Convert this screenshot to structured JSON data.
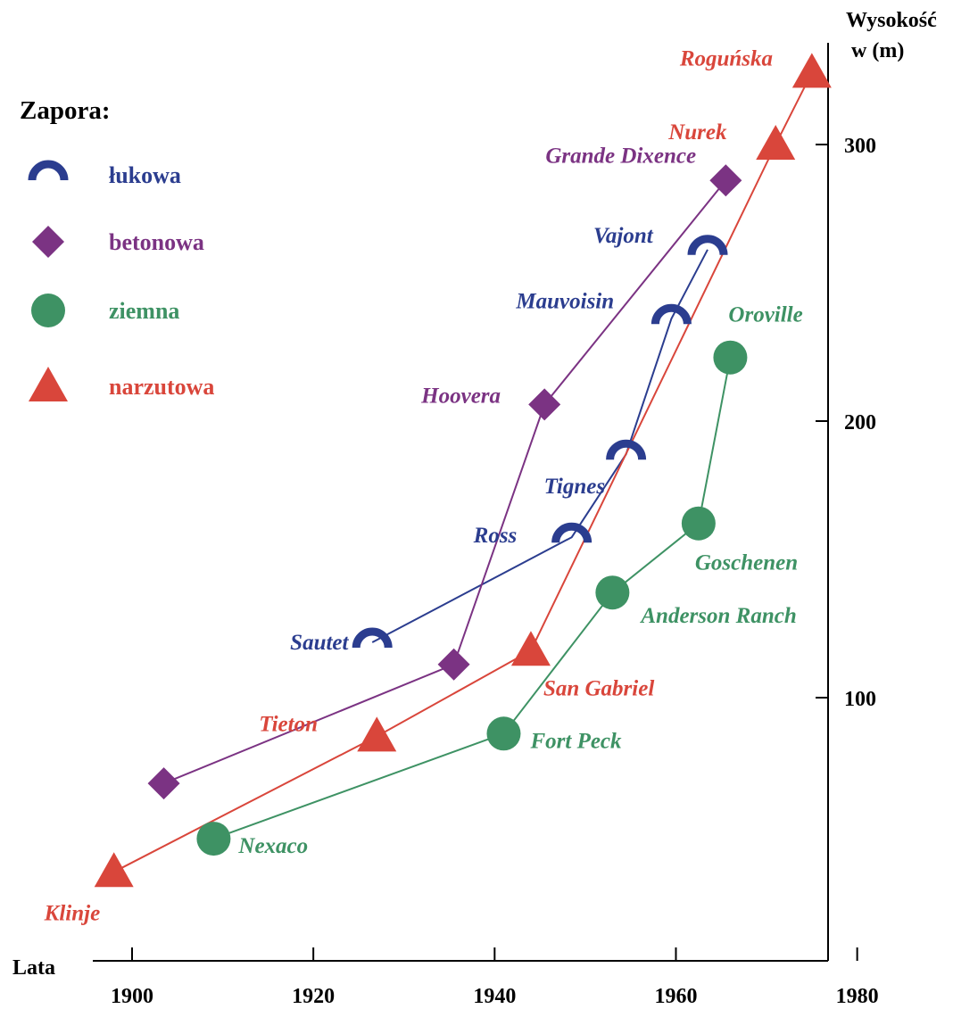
{
  "chart_data": {
    "type": "line",
    "title": "",
    "xlabel": "Lata",
    "ylabel_line1": "Wysokość",
    "ylabel_line2": "w (m)",
    "xlim": [
      1896,
      1980
    ],
    "ylim": [
      0,
      310
    ],
    "x_ticks": [
      1900,
      1920,
      1940,
      1960,
      1980
    ],
    "y_ticks": [
      100,
      200,
      300
    ],
    "legend": {
      "title": "Zapora:",
      "placement": "top-left",
      "items": [
        {
          "key": "arch",
          "label": "łukowa",
          "color": "#2b3d8f",
          "marker": "arch-icon"
        },
        {
          "key": "concrete",
          "label": "betonowa",
          "color": "#7b3383",
          "marker": "diamond-icon"
        },
        {
          "key": "earth",
          "label": "ziemna",
          "color": "#3e9264",
          "marker": "circle-icon"
        },
        {
          "key": "rockfill",
          "label": "narzutowa",
          "color": "#d9463b",
          "marker": "triangle-icon"
        }
      ]
    },
    "series": [
      {
        "key": "arch",
        "points": [
          {
            "name": "Sautet",
            "x": 1926.5,
            "y": 120
          },
          {
            "name": "Ross",
            "x": 1948.5,
            "y": 158
          },
          {
            "name": "Tignes",
            "x": 1954.5,
            "y": 188
          },
          {
            "name": "Mauvoisin",
            "x": 1959.5,
            "y": 237
          },
          {
            "name": "Vajont",
            "x": 1963.5,
            "y": 262
          }
        ]
      },
      {
        "key": "concrete",
        "points": [
          {
            "name": "",
            "x": 1903.5,
            "y": 69
          },
          {
            "name": "",
            "x": 1935.5,
            "y": 112
          },
          {
            "name": "Hoovera",
            "x": 1945.5,
            "y": 206
          },
          {
            "name": "Grande Dixence",
            "x": 1965.5,
            "y": 287
          }
        ]
      },
      {
        "key": "earth",
        "points": [
          {
            "name": "Nexaco",
            "x": 1909,
            "y": 49
          },
          {
            "name": "Fort Peck",
            "x": 1941,
            "y": 87
          },
          {
            "name": "Anderson Ranch",
            "x": 1953,
            "y": 138
          },
          {
            "name": "Goschenen",
            "x": 1962.5,
            "y": 163
          },
          {
            "name": "Oroville",
            "x": 1966,
            "y": 223
          }
        ]
      },
      {
        "key": "rockfill",
        "points": [
          {
            "name": "Klinje",
            "x": 1898,
            "y": 37
          },
          {
            "name": "Tieton",
            "x": 1927,
            "y": 86
          },
          {
            "name": "San Gabriel",
            "x": 1944,
            "y": 117
          },
          {
            "name": "Nurek",
            "x": 1971,
            "y": 300
          },
          {
            "name": "Roguńska",
            "x": 1975,
            "y": 326
          }
        ]
      }
    ]
  }
}
